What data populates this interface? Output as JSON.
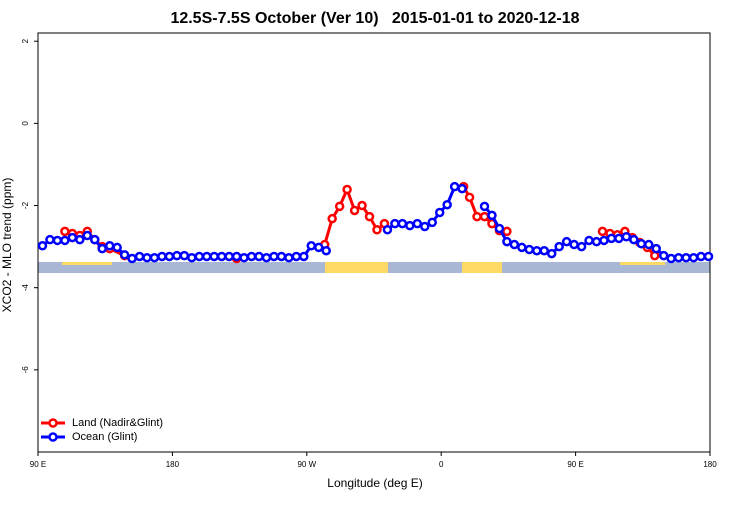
{
  "chart_data": {
    "type": "line",
    "title": "12.5S-7.5S October (Ver 10)   2015-01-01 to 2020-12-18",
    "x_label": "Longitude (deg E)",
    "y_label": "XCO2 - MLO trend (ppm)",
    "xlim": [
      90,
      540
    ],
    "xticks": [
      {
        "value": 90,
        "label": "90 E"
      },
      180,
      {
        "value": 270,
        "label": "90 W"
      },
      {
        "value": 360,
        "label": "0"
      },
      {
        "value": 450,
        "label": "90 E"
      },
      {
        "value": 540,
        "label": "180"
      }
    ],
    "ylim": [
      -8,
      2.2
    ],
    "yticks": [
      -6,
      -4,
      -2,
      0,
      2
    ],
    "legend": "bottom-left",
    "series": [
      {
        "name": "Land (Nadir&Glint)",
        "color": "#ff0000",
        "x": [
          108,
          113,
          118,
          123,
          128,
          133,
          138,
          148,
          153,
          223,
          228,
          282,
          287,
          292,
          297,
          302,
          307,
          312,
          317,
          322,
          327,
          375,
          379,
          384,
          389,
          394,
          399,
          404,
          409,
          468,
          473,
          478,
          483,
          488,
          493,
          498,
          503
        ],
        "values": [
          -2.63,
          -2.68,
          -2.73,
          -2.63,
          -2.83,
          -3.0,
          -3.05,
          -3.22,
          null,
          -3.29,
          null,
          -2.95,
          -2.32,
          -2.02,
          -1.61,
          -2.12,
          -2.0,
          -2.27,
          -2.59,
          -2.44,
          null,
          -1.54,
          -1.8,
          -2.27,
          -2.27,
          -2.44,
          -2.61,
          -2.63,
          null,
          -2.63,
          -2.68,
          -2.71,
          -2.63,
          -2.78,
          -2.9,
          -3.02,
          -3.22
        ]
      },
      {
        "name": "Ocean (Glint)",
        "color": "#0000ff",
        "x": [
          93,
          98,
          103,
          108,
          113,
          118,
          123,
          128,
          133,
          138,
          143,
          148,
          153,
          158,
          163,
          168,
          173,
          178,
          183,
          188,
          193,
          198,
          203,
          208,
          213,
          218,
          223,
          228,
          233,
          238,
          243,
          248,
          253,
          258,
          263,
          268,
          273,
          278,
          283,
          303,
          324,
          329,
          334,
          339,
          344,
          349,
          354,
          359,
          364,
          369,
          374,
          380,
          389,
          394,
          399,
          404,
          409,
          414,
          419,
          424,
          429,
          434,
          439,
          444,
          449,
          454,
          459,
          464,
          469,
          474,
          479,
          484,
          489,
          494,
          499,
          504,
          509,
          514,
          519,
          524,
          529,
          534,
          539
        ],
        "values": [
          -2.98,
          -2.83,
          -2.85,
          -2.85,
          -2.78,
          -2.83,
          -2.73,
          -2.83,
          -3.05,
          -2.98,
          -3.02,
          -3.2,
          -3.29,
          -3.24,
          -3.27,
          -3.27,
          -3.24,
          -3.24,
          -3.22,
          -3.22,
          -3.27,
          -3.24,
          -3.24,
          -3.24,
          -3.24,
          -3.24,
          -3.24,
          -3.27,
          -3.24,
          -3.24,
          -3.27,
          -3.24,
          -3.24,
          -3.27,
          -3.24,
          -3.24,
          -2.98,
          -3.02,
          -3.1,
          null,
          -2.59,
          -2.44,
          -2.44,
          -2.49,
          -2.44,
          -2.51,
          -2.41,
          -2.17,
          -1.98,
          -1.54,
          -1.59,
          null,
          -2.02,
          -2.24,
          -2.56,
          -2.88,
          -2.95,
          -3.02,
          -3.07,
          -3.1,
          -3.1,
          -3.17,
          -3.0,
          -2.88,
          -2.95,
          -3.0,
          -2.85,
          -2.88,
          -2.85,
          -2.8,
          -2.8,
          -2.76,
          -2.83,
          -2.93,
          -2.95,
          -3.05,
          -3.22,
          -3.29,
          -3.27,
          -3.27,
          -3.27,
          -3.24,
          -3.24
        ]
      }
    ]
  }
}
